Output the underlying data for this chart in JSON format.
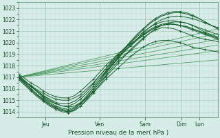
{
  "xlabel": "Pression niveau de la mer( hPa )",
  "ylim": [
    1013.5,
    1023.5
  ],
  "xlim": [
    0,
    132
  ],
  "yticks": [
    1014,
    1015,
    1016,
    1017,
    1018,
    1019,
    1020,
    1021,
    1022,
    1023
  ],
  "xtick_positions": [
    18,
    54,
    84,
    108,
    120
  ],
  "xtick_labels": [
    "Jeu",
    "Ven",
    "Sam",
    "Dim",
    "Lun"
  ],
  "bg_color": "#d6ece6",
  "grid_color_major": "#a8c8c0",
  "grid_color_minor": "#c0ddd8",
  "line_color_dark": "#1a6030",
  "line_color_mid": "#2d7840",
  "line_color_light": "#3a9050",
  "trend_lines": [
    {
      "x": [
        0,
        132
      ],
      "y": [
        1017.0,
        1020.3
      ]
    },
    {
      "x": [
        0,
        132
      ],
      "y": [
        1017.0,
        1019.3
      ]
    },
    {
      "x": [
        0,
        132
      ],
      "y": [
        1017.0,
        1018.5
      ]
    },
    {
      "x": [
        0,
        132
      ],
      "y": [
        1017.0,
        1021.2
      ]
    },
    {
      "x": [
        0,
        132
      ],
      "y": [
        1017.0,
        1020.8
      ]
    },
    {
      "x": [
        0,
        132
      ],
      "y": [
        1017.0,
        1019.8
      ]
    }
  ],
  "ensemble_lines": [
    [
      1017.0,
      1016.6,
      1016.2,
      1015.8,
      1015.4,
      1015.0,
      1014.7,
      1014.5,
      1014.4,
      1014.5,
      1014.8,
      1015.2,
      1015.7,
      1016.2,
      1016.8,
      1017.3,
      1017.8,
      1018.3,
      1018.8,
      1019.2,
      1019.6,
      1019.9,
      1020.1,
      1020.2,
      1020.2,
      1020.1,
      1020.0,
      1019.8,
      1019.6,
      1019.5,
      1019.4,
      1019.3,
      1019.2
    ],
    [
      1017.0,
      1016.5,
      1016.0,
      1015.5,
      1015.1,
      1014.7,
      1014.4,
      1014.2,
      1014.1,
      1014.3,
      1014.7,
      1015.2,
      1015.8,
      1016.5,
      1017.1,
      1017.8,
      1018.4,
      1018.9,
      1019.4,
      1019.9,
      1020.4,
      1020.8,
      1021.1,
      1021.3,
      1021.3,
      1021.2,
      1021.0,
      1020.8,
      1020.6,
      1020.4,
      1020.3,
      1020.2,
      1020.1
    ],
    [
      1017.2,
      1016.7,
      1016.2,
      1015.7,
      1015.2,
      1014.8,
      1014.5,
      1014.3,
      1014.2,
      1014.4,
      1014.8,
      1015.4,
      1016.0,
      1016.7,
      1017.4,
      1018.0,
      1018.6,
      1019.2,
      1019.7,
      1020.2,
      1020.7,
      1021.1,
      1021.4,
      1021.6,
      1021.7,
      1021.6,
      1021.5,
      1021.3,
      1021.1,
      1020.9,
      1020.7,
      1020.5,
      1020.3
    ],
    [
      1016.9,
      1016.4,
      1015.9,
      1015.4,
      1015.0,
      1014.6,
      1014.3,
      1014.1,
      1014.0,
      1014.1,
      1014.5,
      1015.0,
      1015.6,
      1016.3,
      1017.0,
      1017.6,
      1018.2,
      1018.8,
      1019.3,
      1019.8,
      1020.3,
      1020.8,
      1021.2,
      1021.5,
      1021.7,
      1021.8,
      1021.8,
      1021.7,
      1021.5,
      1021.2,
      1020.9,
      1020.7,
      1020.5
    ],
    [
      1017.1,
      1016.7,
      1016.2,
      1015.8,
      1015.3,
      1014.9,
      1014.7,
      1014.5,
      1014.5,
      1014.7,
      1015.1,
      1015.6,
      1016.2,
      1016.9,
      1017.5,
      1018.1,
      1018.7,
      1019.3,
      1019.8,
      1020.3,
      1020.8,
      1021.3,
      1021.7,
      1022.0,
      1022.2,
      1022.3,
      1022.3,
      1022.2,
      1022.1,
      1021.9,
      1021.7,
      1021.5,
      1021.3
    ],
    [
      1017.0,
      1016.6,
      1016.3,
      1015.9,
      1015.6,
      1015.3,
      1015.1,
      1015.0,
      1015.0,
      1015.2,
      1015.5,
      1016.0,
      1016.5,
      1017.1,
      1017.7,
      1018.3,
      1018.8,
      1019.3,
      1019.8,
      1020.2,
      1020.6,
      1021.0,
      1021.3,
      1021.5,
      1021.6,
      1021.6,
      1021.5,
      1021.4,
      1021.2,
      1021.0,
      1020.8,
      1020.6,
      1020.4
    ],
    [
      1017.3,
      1016.9,
      1016.5,
      1016.2,
      1015.8,
      1015.5,
      1015.3,
      1015.2,
      1015.2,
      1015.4,
      1015.8,
      1016.3,
      1016.8,
      1017.4,
      1018.0,
      1018.5,
      1019.0,
      1019.5,
      1019.9,
      1020.3,
      1020.7,
      1021.0,
      1021.3,
      1021.5,
      1021.6,
      1021.6,
      1021.5,
      1021.4,
      1021.2,
      1021.0,
      1020.8,
      1020.6,
      1020.4
    ],
    [
      1017.0,
      1016.5,
      1016.0,
      1015.5,
      1015.0,
      1014.6,
      1014.3,
      1014.1,
      1014.0,
      1014.2,
      1014.7,
      1015.3,
      1016.0,
      1016.7,
      1017.5,
      1018.2,
      1018.9,
      1019.5,
      1020.1,
      1020.7,
      1021.2,
      1021.7,
      1022.1,
      1022.4,
      1022.6,
      1022.7,
      1022.7,
      1022.6,
      1022.4,
      1022.1,
      1021.8,
      1021.5,
      1021.2
    ],
    [
      1016.8,
      1016.3,
      1015.8,
      1015.3,
      1014.9,
      1014.5,
      1014.2,
      1014.0,
      1013.9,
      1014.1,
      1014.5,
      1015.1,
      1015.8,
      1016.5,
      1017.3,
      1018.0,
      1018.7,
      1019.4,
      1020.0,
      1020.6,
      1021.1,
      1021.6,
      1022.0,
      1022.3,
      1022.5,
      1022.6,
      1022.6,
      1022.5,
      1022.3,
      1022.1,
      1021.8,
      1021.5,
      1021.3
    ],
    [
      1017.0,
      1016.6,
      1016.2,
      1015.8,
      1015.4,
      1015.1,
      1014.8,
      1014.7,
      1014.7,
      1014.9,
      1015.3,
      1015.8,
      1016.4,
      1017.1,
      1017.7,
      1018.4,
      1019.0,
      1019.5,
      1020.0,
      1020.5,
      1020.9,
      1021.3,
      1021.6,
      1021.8,
      1021.9,
      1021.9,
      1021.8,
      1021.7,
      1021.5,
      1021.3,
      1021.1,
      1020.9,
      1020.7
    ]
  ]
}
